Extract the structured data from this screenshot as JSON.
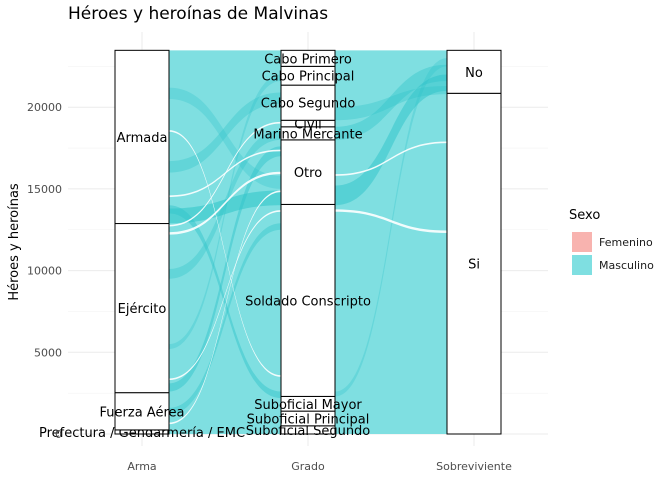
{
  "chart_data": {
    "type": "alluvial",
    "title": "Héroes y heroínas de Malvinas",
    "ylabel": "Héroes y heroínas",
    "xlabel": "",
    "ylim": [
      0,
      24200
    ],
    "yticks": [
      0,
      5000,
      10000,
      15000,
      20000
    ],
    "grid": true,
    "legend_position": "right",
    "axes": [
      "Arma",
      "Grado",
      "Sobreviviente"
    ],
    "legend": {
      "title": "Sexo",
      "entries": [
        {
          "name": "Femenino",
          "color": "#F8B3AF"
        },
        {
          "name": "Masculino",
          "color": "#7FDFE1"
        }
      ]
    },
    "strata": {
      "Arma": [
        {
          "label": "Prefectura / Gendarmería / EMC",
          "value": 250
        },
        {
          "label": "Fuerza Aérea",
          "value": 2280
        },
        {
          "label": "Ejército",
          "value": 10350
        },
        {
          "label": "Armada",
          "value": 10600
        }
      ],
      "Grado": [
        {
          "label": "Suboficial Segundo",
          "value": 500
        },
        {
          "label": "Suboficial Principal",
          "value": 900
        },
        {
          "label": "Suboficial Mayor",
          "value": 900
        },
        {
          "label": "Soldado Conscripto",
          "value": 11750
        },
        {
          "label": "Otro",
          "value": 3950
        },
        {
          "label": "Marino Mercante",
          "value": 800
        },
        {
          "label": "Civil",
          "value": 400
        },
        {
          "label": "Cabo Segundo",
          "value": 2150
        },
        {
          "label": "Cabo Principal",
          "value": 1150
        },
        {
          "label": "Cabo Primero",
          "value": 980
        }
      ],
      "Sobreviviente": [
        {
          "label": "Si",
          "value": 20850
        },
        {
          "label": "No",
          "value": 2630
        }
      ]
    }
  }
}
